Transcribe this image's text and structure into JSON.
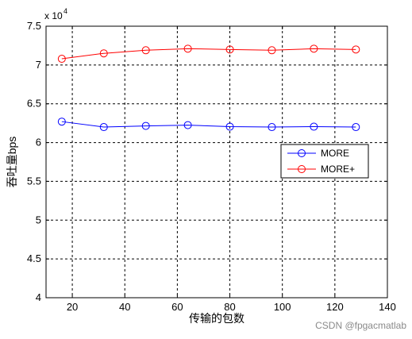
{
  "chart_data": {
    "type": "line",
    "xlabel": "传输的包数",
    "ylabel": "吞吐量bps",
    "xlim": [
      10,
      140
    ],
    "ylim": [
      40000,
      75000
    ],
    "x_ticks": [
      20,
      40,
      60,
      80,
      100,
      120,
      140
    ],
    "y_ticks": [
      4,
      4.5,
      5,
      5.5,
      6,
      6.5,
      7,
      7.5
    ],
    "y_exponent_label": "x 10",
    "y_exponent_power": "4",
    "grid": true,
    "grid_style": "dashed",
    "legend_position": "center-right",
    "x": [
      16,
      32,
      48,
      64,
      80,
      96,
      112,
      128
    ],
    "series": [
      {
        "name": "MORE",
        "color": "#0000ff",
        "marker": "circle",
        "values": [
          62700,
          62000,
          62150,
          62250,
          62050,
          62000,
          62050,
          62000
        ]
      },
      {
        "name": "MORE+",
        "color": "#ff0000",
        "marker": "circle",
        "values": [
          70800,
          71500,
          71900,
          72100,
          72000,
          71900,
          72100,
          72000
        ]
      }
    ]
  },
  "watermark": "CSDN @fpgacmatlab"
}
